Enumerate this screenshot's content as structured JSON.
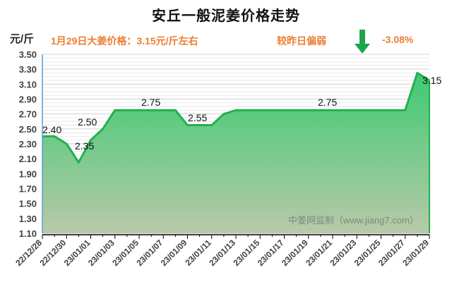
{
  "title": "安丘一般泥姜价格走势",
  "unit": "元/斤",
  "note_left": "1月29日大姜价格：3.15元/斤左右",
  "note_right": "较昨日偏弱",
  "change_pct": "-3.08%",
  "arrow_icon": "down-arrow-icon",
  "watermark": "中姜网监制（www.jiang7.com）",
  "colors": {
    "line": "#22b14c",
    "fill_top": "#3dca72",
    "fill_bottom": "#b8c9aa",
    "note": "#ed7d31",
    "arrow": "#1aa64a",
    "axis_left": "#5b9bd5"
  },
  "chart_data": {
    "type": "area",
    "title": "安丘一般泥姜价格走势",
    "xlabel": "",
    "ylabel": "元/斤",
    "ylim": [
      1.1,
      3.5
    ],
    "ytick_step": 0.2,
    "grid": true,
    "legend": "none",
    "yticks": [
      "3.50",
      "3.30",
      "3.10",
      "2.90",
      "2.70",
      "2.50",
      "2.30",
      "2.10",
      "1.90",
      "1.70",
      "1.50",
      "1.30",
      "1.10"
    ],
    "xtick_labels": [
      "22/12/28",
      "22/12/30",
      "23/01/01",
      "23/01/03",
      "23/01/05",
      "23/01/07",
      "23/01/09",
      "23/01/11",
      "23/01/13",
      "23/01/15",
      "23/01/17",
      "23/01/19",
      "23/01/21",
      "23/01/23",
      "23/01/25",
      "23/01/27",
      "23/01/29"
    ],
    "x": [
      "22/12/28",
      "22/12/29",
      "22/12/30",
      "22/12/31",
      "23/01/01",
      "23/01/02",
      "23/01/03",
      "23/01/04",
      "23/01/05",
      "23/01/06",
      "23/01/07",
      "23/01/08",
      "23/01/09",
      "23/01/10",
      "23/01/11",
      "23/01/12",
      "23/01/13",
      "23/01/14",
      "23/01/15",
      "23/01/16",
      "23/01/17",
      "23/01/18",
      "23/01/19",
      "23/01/20",
      "23/01/21",
      "23/01/22",
      "23/01/23",
      "23/01/24",
      "23/01/25",
      "23/01/26",
      "23/01/27",
      "23/01/28",
      "23/01/29"
    ],
    "series": [
      {
        "name": "安丘一般泥姜价格",
        "values": [
          2.4,
          2.4,
          2.3,
          2.05,
          2.35,
          2.5,
          2.75,
          2.75,
          2.75,
          2.75,
          2.75,
          2.75,
          2.55,
          2.55,
          2.55,
          2.7,
          2.75,
          2.75,
          2.75,
          2.75,
          2.75,
          2.75,
          2.75,
          2.75,
          2.75,
          2.75,
          2.75,
          2.75,
          2.75,
          2.75,
          2.75,
          3.25,
          3.15
        ]
      }
    ],
    "annotations": [
      {
        "text": "2.40",
        "x": "22/12/28"
      },
      {
        "text": "2.35",
        "x": "23/01/01"
      },
      {
        "text": "2.50",
        "x": "23/01/02"
      },
      {
        "text": "2.75",
        "x": "23/01/05"
      },
      {
        "text": "2.55",
        "x": "23/01/10"
      },
      {
        "text": "2.75",
        "x": "23/01/21"
      },
      {
        "text": "3.15",
        "x": "23/01/29"
      }
    ]
  }
}
